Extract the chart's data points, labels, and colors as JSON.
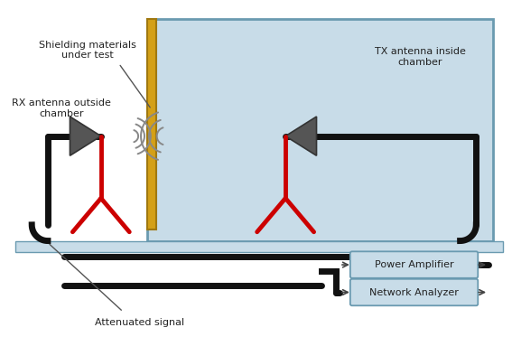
{
  "bg_color": "#ffffff",
  "chamber_color": "#c8dce8",
  "chamber_border": "#6a9ab0",
  "cable_color": "#111111",
  "antenna_stem_color": "#cc0000",
  "antenna_body_color": "#555555",
  "shielding_color": "#d4a017",
  "shielding_border": "#a07810",
  "box_color": "#c8dce8",
  "box_border": "#6a9ab0",
  "text_color": "#222222",
  "wave_color": "#888888",
  "labels": {
    "shielding": "Shielding materials\nunder test",
    "rx_antenna": "RX antenna outside\nchamber",
    "tx_antenna": "TX antenna inside\nchamber",
    "attenuated": "Attenuated signal",
    "power_amp": "Power Amplifier",
    "network": "Network Analyzer"
  }
}
